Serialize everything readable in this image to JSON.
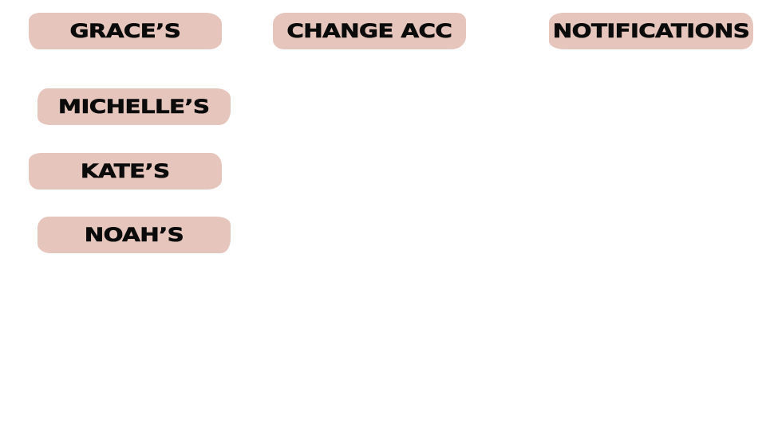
{
  "header": {
    "grace_label": "GRACE’S",
    "change_account_label": "CHANGE ACC",
    "notifications_label": "NOTIFICATIONS"
  },
  "accounts": {
    "michelle_label": "MICHELLE’S",
    "kate_label": "KATE’S",
    "noah_label": "NOAH’S"
  },
  "colors": {
    "button_background": "#e6c6bc",
    "button_text": "#0b0b0b",
    "page_background": "#ffffff"
  }
}
